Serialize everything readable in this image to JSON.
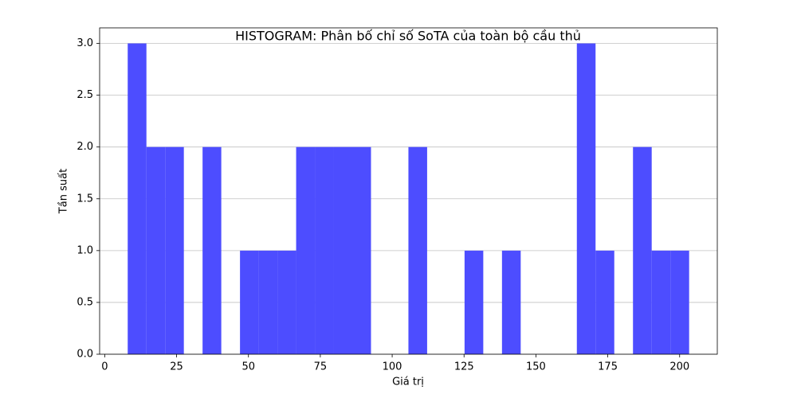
{
  "chart_data": {
    "type": "histogram",
    "title": "HISTOGRAM: Phân bố chỉ số SoTA của toàn bộ cầu thủ",
    "x_label": "Giá trị",
    "y_label": "Tần suất",
    "bins": [
      8.0,
      14.51,
      21.02,
      27.53,
      34.04,
      40.55,
      47.06,
      53.57,
      60.08,
      66.59,
      73.1,
      79.61,
      86.12,
      92.63,
      99.14,
      105.65,
      112.16,
      118.67,
      125.18,
      131.69,
      138.2,
      144.71,
      151.22,
      157.73,
      164.24,
      170.75,
      177.26,
      183.77,
      190.28,
      196.79,
      203.3
    ],
    "values": [
      3,
      2,
      2,
      0,
      2,
      0,
      1,
      1,
      1,
      2,
      2,
      2,
      2,
      0,
      0,
      2,
      0,
      0,
      1,
      0,
      1,
      0,
      0,
      0,
      3,
      1,
      0,
      2,
      1,
      1
    ],
    "color": "#4d4dff",
    "xlim": [
      -1.77,
      213.1
    ],
    "xticks": [
      0,
      25,
      50,
      75,
      100,
      125,
      150,
      175,
      200
    ],
    "ylim": [
      0,
      3.15
    ],
    "yticks": [
      {
        "value": 0,
        "label": "0.0"
      },
      {
        "value": 0.5,
        "label": "0.5"
      },
      {
        "value": 1,
        "label": "1.0"
      },
      {
        "value": 1.5,
        "label": "1.5"
      },
      {
        "value": 2,
        "label": "2.0"
      },
      {
        "value": 2.5,
        "label": "2.5"
      },
      {
        "value": 3,
        "label": "3.0"
      }
    ],
    "grid": "y"
  }
}
